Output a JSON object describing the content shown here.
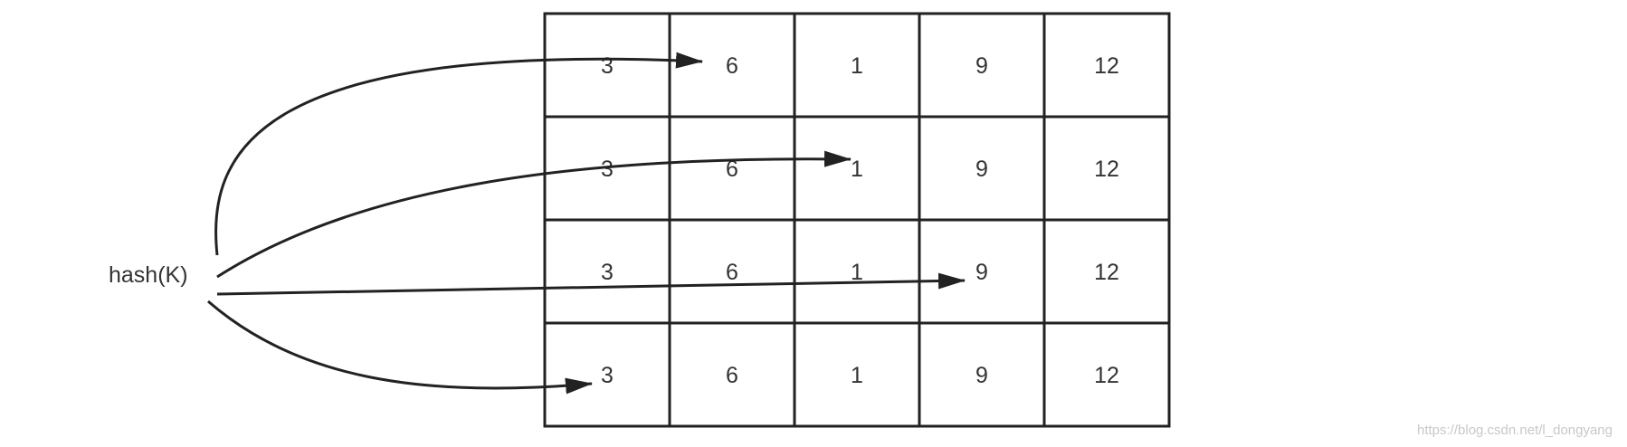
{
  "hash_label": "hash(K)",
  "table": {
    "rows": [
      [
        "3",
        "6",
        "1",
        "9",
        "12"
      ],
      [
        "3",
        "6",
        "1",
        "9",
        "12"
      ],
      [
        "3",
        "6",
        "1",
        "9",
        "12"
      ],
      [
        "3",
        "6",
        "1",
        "9",
        "12"
      ]
    ]
  },
  "arrows": [
    {
      "from": "hash(K)",
      "to_row": 0,
      "to_col": 1
    },
    {
      "from": "hash(K)",
      "to_row": 1,
      "to_col": 2
    },
    {
      "from": "hash(K)",
      "to_row": 2,
      "to_col": 3
    },
    {
      "from": "hash(K)",
      "to_row": 3,
      "to_col": 0
    }
  ],
  "watermark": "https://blog.csdn.net/l_dongyang",
  "colors": {
    "line": "#222222",
    "text": "#333333",
    "watermark": "#c8c8c8"
  }
}
